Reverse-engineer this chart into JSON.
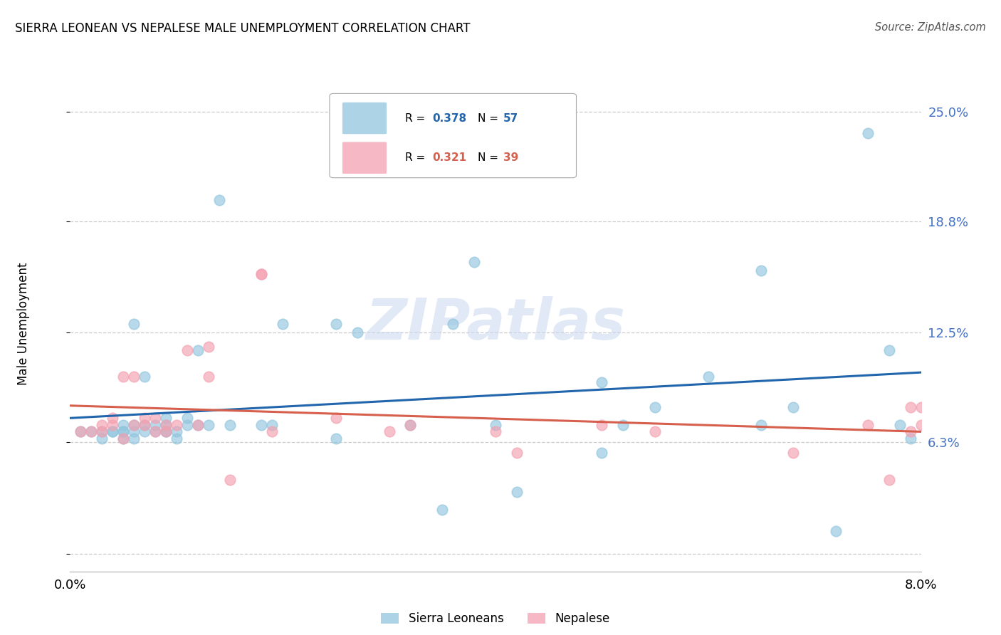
{
  "title": "SIERRA LEONEAN VS NEPALESE MALE UNEMPLOYMENT CORRELATION CHART",
  "source": "Source: ZipAtlas.com",
  "ylabel": "Male Unemployment",
  "xlim": [
    0.0,
    0.08
  ],
  "ylim": [
    -0.01,
    0.27
  ],
  "ytick_vals": [
    0.0,
    0.063,
    0.125,
    0.188,
    0.25
  ],
  "ytick_labels": [
    "",
    "6.3%",
    "12.5%",
    "18.8%",
    "25.0%"
  ],
  "xtick_vals": [
    0.0,
    0.02,
    0.04,
    0.06,
    0.08
  ],
  "xtick_labels": [
    "0.0%",
    "",
    "",
    "",
    "8.0%"
  ],
  "legend1_r": "0.378",
  "legend1_n": "57",
  "legend2_r": "0.321",
  "legend2_n": "39",
  "blue_color": "#92c5de",
  "pink_color": "#f4a0b0",
  "line_blue": "#2166ac",
  "line_pink": "#d6604d",
  "watermark_text": "ZIPatlas",
  "blue_x": [
    0.001,
    0.002,
    0.003,
    0.003,
    0.004,
    0.004,
    0.005,
    0.005,
    0.005,
    0.005,
    0.006,
    0.006,
    0.006,
    0.006,
    0.007,
    0.007,
    0.007,
    0.008,
    0.008,
    0.009,
    0.009,
    0.009,
    0.009,
    0.01,
    0.01,
    0.011,
    0.011,
    0.012,
    0.012,
    0.013,
    0.014,
    0.015,
    0.018,
    0.019,
    0.02,
    0.025,
    0.025,
    0.027,
    0.032,
    0.035,
    0.036,
    0.038,
    0.04,
    0.042,
    0.05,
    0.05,
    0.052,
    0.055,
    0.06,
    0.065,
    0.065,
    0.068,
    0.072,
    0.075,
    0.077,
    0.078,
    0.079
  ],
  "blue_y": [
    0.069,
    0.069,
    0.069,
    0.065,
    0.069,
    0.069,
    0.069,
    0.073,
    0.069,
    0.065,
    0.069,
    0.073,
    0.065,
    0.13,
    0.069,
    0.073,
    0.1,
    0.073,
    0.069,
    0.069,
    0.073,
    0.069,
    0.077,
    0.069,
    0.065,
    0.073,
    0.077,
    0.073,
    0.115,
    0.073,
    0.2,
    0.073,
    0.073,
    0.073,
    0.13,
    0.065,
    0.13,
    0.125,
    0.073,
    0.025,
    0.13,
    0.165,
    0.073,
    0.035,
    0.057,
    0.097,
    0.073,
    0.083,
    0.1,
    0.073,
    0.16,
    0.083,
    0.013,
    0.238,
    0.115,
    0.073,
    0.065
  ],
  "pink_x": [
    0.001,
    0.002,
    0.003,
    0.003,
    0.004,
    0.004,
    0.005,
    0.005,
    0.006,
    0.006,
    0.007,
    0.007,
    0.008,
    0.008,
    0.009,
    0.009,
    0.01,
    0.011,
    0.012,
    0.013,
    0.013,
    0.015,
    0.018,
    0.018,
    0.019,
    0.025,
    0.03,
    0.032,
    0.04,
    0.042,
    0.05,
    0.055,
    0.068,
    0.075,
    0.077,
    0.079,
    0.079,
    0.08,
    0.08
  ],
  "pink_y": [
    0.069,
    0.069,
    0.069,
    0.073,
    0.073,
    0.077,
    0.065,
    0.1,
    0.073,
    0.1,
    0.073,
    0.077,
    0.069,
    0.077,
    0.069,
    0.073,
    0.073,
    0.115,
    0.073,
    0.117,
    0.1,
    0.042,
    0.158,
    0.158,
    0.069,
    0.077,
    0.069,
    0.073,
    0.069,
    0.057,
    0.073,
    0.069,
    0.057,
    0.073,
    0.042,
    0.069,
    0.083,
    0.083,
    0.073
  ]
}
